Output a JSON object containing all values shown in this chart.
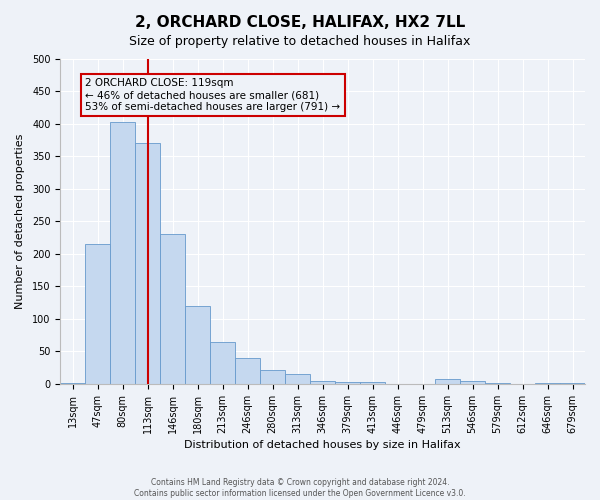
{
  "title": "2, ORCHARD CLOSE, HALIFAX, HX2 7LL",
  "subtitle": "Size of property relative to detached houses in Halifax",
  "xlabel": "Distribution of detached houses by size in Halifax",
  "ylabel": "Number of detached properties",
  "categories": [
    "13sqm",
    "47sqm",
    "80sqm",
    "113sqm",
    "146sqm",
    "180sqm",
    "213sqm",
    "246sqm",
    "280sqm",
    "313sqm",
    "346sqm",
    "379sqm",
    "413sqm",
    "446sqm",
    "479sqm",
    "513sqm",
    "546sqm",
    "579sqm",
    "612sqm",
    "646sqm",
    "679sqm"
  ],
  "values": [
    2,
    215,
    403,
    370,
    230,
    120,
    65,
    40,
    22,
    15,
    5,
    3,
    3,
    0,
    0,
    8,
    5,
    2,
    0,
    2,
    2
  ],
  "bar_color": "#c5d8ef",
  "bar_edge_color": "#6699cc",
  "vline_x": 3.0,
  "vline_color": "#cc0000",
  "annotation_text": "2 ORCHARD CLOSE: 119sqm\n← 46% of detached houses are smaller (681)\n53% of semi-detached houses are larger (791) →",
  "annotation_box_color": "#cc0000",
  "footer_line1": "Contains HM Land Registry data © Crown copyright and database right 2024.",
  "footer_line2": "Contains public sector information licensed under the Open Government Licence v3.0.",
  "ylim": [
    0,
    500
  ],
  "yticks": [
    0,
    50,
    100,
    150,
    200,
    250,
    300,
    350,
    400,
    450,
    500
  ],
  "background_color": "#eef2f8",
  "grid_color": "#ffffff",
  "title_fontsize": 11,
  "subtitle_fontsize": 9,
  "axis_label_fontsize": 8,
  "tick_fontsize": 7,
  "annotation_fontsize": 7.5,
  "footer_fontsize": 5.5
}
